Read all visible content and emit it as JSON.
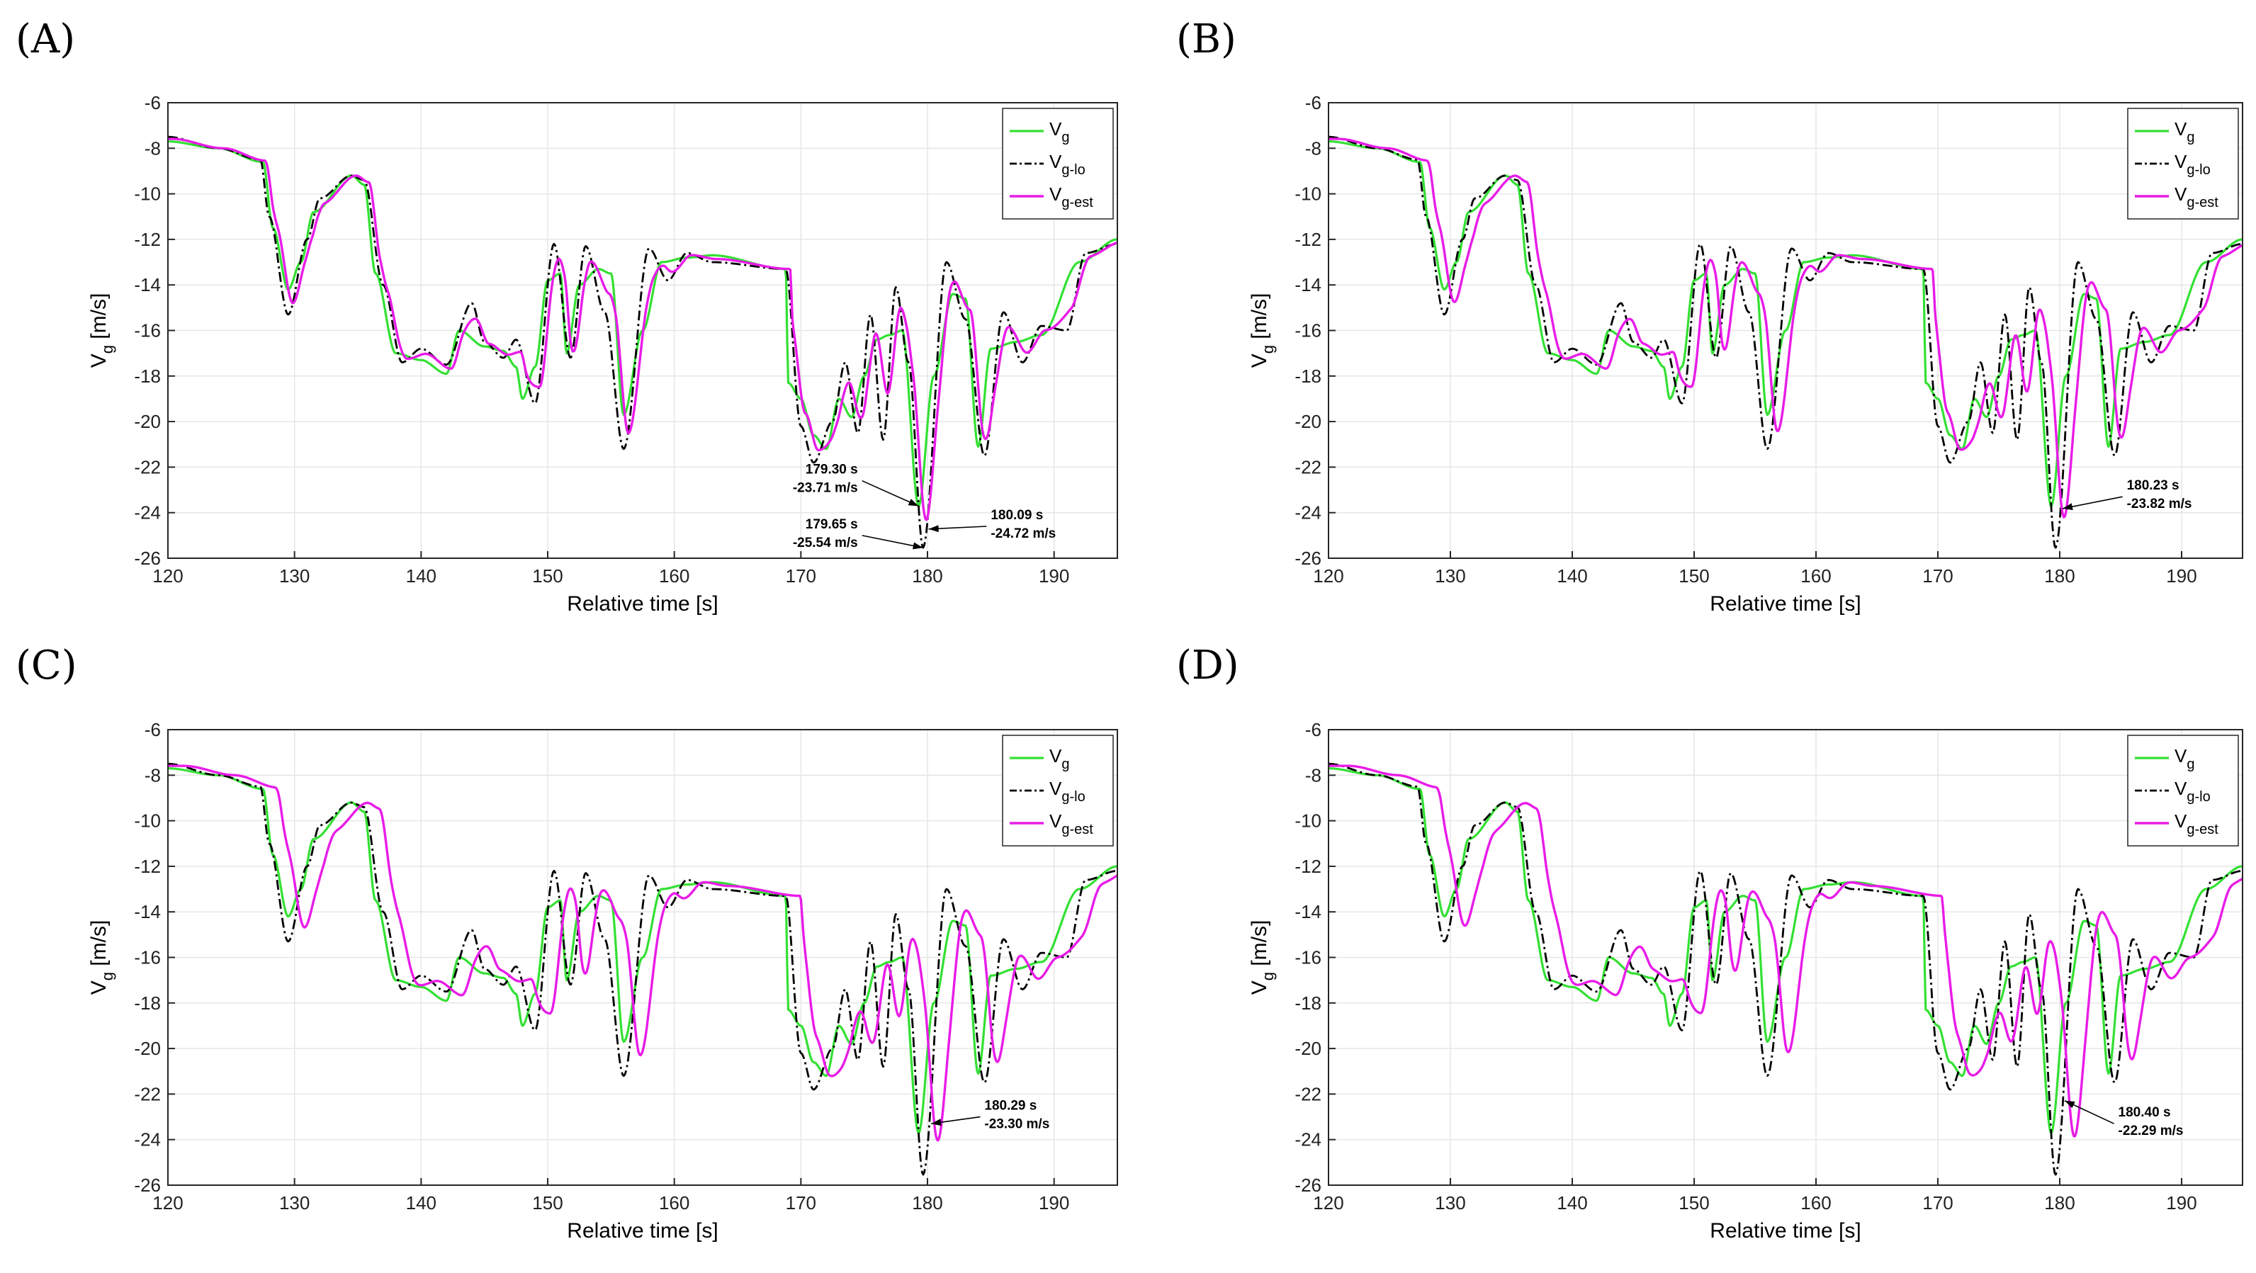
{
  "figure": {
    "panels": [
      {
        "id": "A",
        "label": "(A)"
      },
      {
        "id": "B",
        "label": "(B)"
      },
      {
        "id": "C",
        "label": "(C)"
      },
      {
        "id": "D",
        "label": "(D)"
      }
    ]
  },
  "colors": {
    "vg": "#33e033",
    "vglo": "#000000",
    "vgest": "#e81ce8"
  },
  "chart_data": [
    {
      "panel": "A",
      "type": "line",
      "xlabel": "Relative time [s]",
      "ylabel": "V",
      "ylabel_sub": "g",
      "ylabel_unit": " [m/s]",
      "xlim": [
        120,
        195
      ],
      "ylim": [
        -26,
        -6
      ],
      "xticks": [
        120,
        130,
        140,
        150,
        160,
        170,
        180,
        190
      ],
      "yticks": [
        -6,
        -8,
        -10,
        -12,
        -14,
        -16,
        -18,
        -20,
        -22,
        -24,
        -26
      ],
      "grid": true,
      "legend_position": "top-right",
      "series": [
        {
          "name": "V",
          "sub": "g",
          "style": "solid",
          "color": "#33e033"
        },
        {
          "name": "V",
          "sub": "g-lo",
          "style": "dashdot",
          "color": "#000000"
        },
        {
          "name": "V",
          "sub": "g-est",
          "style": "solid",
          "color": "#e81ce8"
        }
      ],
      "est_lag": 0.35,
      "annotations": [
        {
          "line1": "179.30 s",
          "line2": "-23.71 m/s",
          "x": 179.3,
          "y": -23.71,
          "tx": 174.5,
          "ty": -22.6,
          "anchor": "end"
        },
        {
          "line1": "179.65 s",
          "line2": "-25.54 m/s",
          "x": 179.65,
          "y": -25.54,
          "tx": 174.5,
          "ty": -25.0,
          "anchor": "end"
        },
        {
          "line1": "180.09 s",
          "line2": "-24.72 m/s",
          "x": 180.09,
          "y": -24.72,
          "tx": 185.0,
          "ty": -24.6,
          "anchor": "start"
        }
      ]
    },
    {
      "panel": "B",
      "type": "line",
      "xlabel": "Relative time [s]",
      "ylabel": "V",
      "ylabel_sub": "g",
      "ylabel_unit": " [m/s]",
      "xlim": [
        120,
        195
      ],
      "ylim": [
        -26,
        -6
      ],
      "xticks": [
        120,
        130,
        140,
        150,
        160,
        170,
        180,
        190
      ],
      "yticks": [
        -6,
        -8,
        -10,
        -12,
        -14,
        -16,
        -18,
        -20,
        -22,
        -24,
        -26
      ],
      "grid": true,
      "legend_position": "top-right",
      "series": [
        {
          "name": "V",
          "sub": "g",
          "style": "solid",
          "color": "#33e033"
        },
        {
          "name": "V",
          "sub": "g-lo",
          "style": "dashdot",
          "color": "#000000"
        },
        {
          "name": "V",
          "sub": "g-est",
          "style": "solid",
          "color": "#e81ce8"
        }
      ],
      "est_lag": 0.75,
      "annotations": [
        {
          "line1": "180.23 s",
          "line2": "-23.82 m/s",
          "x": 180.23,
          "y": -23.82,
          "tx": 185.5,
          "ty": -23.3,
          "anchor": "start"
        }
      ]
    },
    {
      "panel": "C",
      "type": "line",
      "xlabel": "Relative time [s]",
      "ylabel": "V",
      "ylabel_sub": "g",
      "ylabel_unit": " [m/s]",
      "xlim": [
        120,
        195
      ],
      "ylim": [
        -26,
        -6
      ],
      "xticks": [
        120,
        130,
        140,
        150,
        160,
        170,
        180,
        190
      ],
      "yticks": [
        -6,
        -8,
        -10,
        -12,
        -14,
        -16,
        -18,
        -20,
        -22,
        -24,
        -26
      ],
      "grid": true,
      "legend_position": "top-right",
      "series": [
        {
          "name": "V",
          "sub": "g",
          "style": "solid",
          "color": "#33e033"
        },
        {
          "name": "V",
          "sub": "g-lo",
          "style": "dashdot",
          "color": "#000000"
        },
        {
          "name": "V",
          "sub": "g-est",
          "style": "solid",
          "color": "#e81ce8"
        }
      ],
      "est_lag": 1.15,
      "annotations": [
        {
          "line1": "180.29 s",
          "line2": "-23.30 m/s",
          "x": 180.29,
          "y": -23.3,
          "tx": 184.5,
          "ty": -23.0,
          "anchor": "start"
        }
      ]
    },
    {
      "panel": "D",
      "type": "line",
      "xlabel": "Relative time [s]",
      "ylabel": "V",
      "ylabel_sub": "g",
      "ylabel_unit": " [m/s]",
      "xlim": [
        120,
        195
      ],
      "ylim": [
        -26,
        -6
      ],
      "xticks": [
        120,
        130,
        140,
        150,
        160,
        170,
        180,
        190
      ],
      "yticks": [
        -6,
        -8,
        -10,
        -12,
        -14,
        -16,
        -18,
        -20,
        -22,
        -24,
        -26
      ],
      "grid": true,
      "legend_position": "top-right",
      "series": [
        {
          "name": "V",
          "sub": "g",
          "style": "solid",
          "color": "#33e033"
        },
        {
          "name": "V",
          "sub": "g-lo",
          "style": "dashdot",
          "color": "#000000"
        },
        {
          "name": "V",
          "sub": "g-est",
          "style": "solid",
          "color": "#e81ce8"
        }
      ],
      "est_lag": 1.5,
      "annotations": [
        {
          "line1": "180.40 s",
          "line2": "-22.29 m/s",
          "x": 180.4,
          "y": -22.29,
          "tx": 184.8,
          "ty": -23.3,
          "anchor": "start"
        }
      ]
    }
  ],
  "waveforms": {
    "vg": [
      [
        120,
        -7.7
      ],
      [
        124,
        -8.0
      ],
      [
        127.5,
        -8.6
      ],
      [
        128.3,
        -11.5
      ],
      [
        129.5,
        -14.2
      ],
      [
        130.5,
        -13.0
      ],
      [
        131.5,
        -10.8
      ],
      [
        134.5,
        -9.2
      ],
      [
        135.5,
        -9.6
      ],
      [
        136.4,
        -13.5
      ],
      [
        138,
        -17.0
      ],
      [
        140,
        -17.3
      ],
      [
        142,
        -17.9
      ],
      [
        143,
        -16.0
      ],
      [
        145,
        -16.7
      ],
      [
        146.5,
        -16.9
      ],
      [
        147.5,
        -17.6
      ],
      [
        148,
        -19.0
      ],
      [
        149,
        -17.6
      ],
      [
        150,
        -13.8
      ],
      [
        151,
        -13.5
      ],
      [
        151.5,
        -17.0
      ],
      [
        152.5,
        -14.0
      ],
      [
        154,
        -13.3
      ],
      [
        155,
        -13.5
      ],
      [
        156,
        -19.7
      ],
      [
        157.5,
        -16.0
      ],
      [
        159,
        -13.0
      ],
      [
        161,
        -12.8
      ],
      [
        163,
        -12.7
      ],
      [
        168.8,
        -13.3
      ],
      [
        169,
        -18.3
      ],
      [
        170,
        -19.0
      ],
      [
        171,
        -20.6
      ],
      [
        172,
        -21.2
      ],
      [
        173,
        -19.0
      ],
      [
        174,
        -19.8
      ],
      [
        175,
        -18.0
      ],
      [
        176,
        -16.4
      ],
      [
        177,
        -16.2
      ],
      [
        178,
        -16.0
      ],
      [
        179.3,
        -23.71
      ],
      [
        180.5,
        -18.0
      ],
      [
        182,
        -14.4
      ],
      [
        183,
        -14.6
      ],
      [
        184,
        -21.1
      ],
      [
        185,
        -16.8
      ],
      [
        187,
        -16.5
      ],
      [
        189,
        -16.2
      ],
      [
        192,
        -13.0
      ],
      [
        195,
        -12.0
      ]
    ],
    "vglo": [
      [
        120,
        -7.5
      ],
      [
        124,
        -8.0
      ],
      [
        127.3,
        -8.5
      ],
      [
        128,
        -11.0
      ],
      [
        129.5,
        -15.3
      ],
      [
        131,
        -12.0
      ],
      [
        132,
        -10.2
      ],
      [
        134.5,
        -9.2
      ],
      [
        135.5,
        -9.4
      ],
      [
        137,
        -14.0
      ],
      [
        138.5,
        -17.4
      ],
      [
        140,
        -16.8
      ],
      [
        142,
        -17.5
      ],
      [
        144,
        -14.8
      ],
      [
        145,
        -16.5
      ],
      [
        146.5,
        -17.2
      ],
      [
        147.5,
        -16.4
      ],
      [
        149,
        -19.2
      ],
      [
        150.5,
        -12.2
      ],
      [
        151.8,
        -17.2
      ],
      [
        153,
        -12.3
      ],
      [
        154.5,
        -15.2
      ],
      [
        156,
        -21.2
      ],
      [
        158,
        -12.4
      ],
      [
        159.5,
        -13.8
      ],
      [
        161,
        -12.6
      ],
      [
        163,
        -13.0
      ],
      [
        168.8,
        -13.3
      ],
      [
        170,
        -20.2
      ],
      [
        171,
        -21.8
      ],
      [
        172.5,
        -20.0
      ],
      [
        173.5,
        -17.4
      ],
      [
        174.5,
        -20.5
      ],
      [
        175.5,
        -15.3
      ],
      [
        176.5,
        -20.8
      ],
      [
        177.5,
        -14.1
      ],
      [
        178.5,
        -17.4
      ],
      [
        179.65,
        -25.54
      ],
      [
        181.5,
        -13.0
      ],
      [
        183,
        -15.5
      ],
      [
        184.5,
        -21.5
      ],
      [
        186,
        -15.2
      ],
      [
        187.5,
        -17.4
      ],
      [
        189,
        -15.8
      ],
      [
        191,
        -16.0
      ],
      [
        192.5,
        -12.6
      ],
      [
        195,
        -12.2
      ]
    ]
  }
}
